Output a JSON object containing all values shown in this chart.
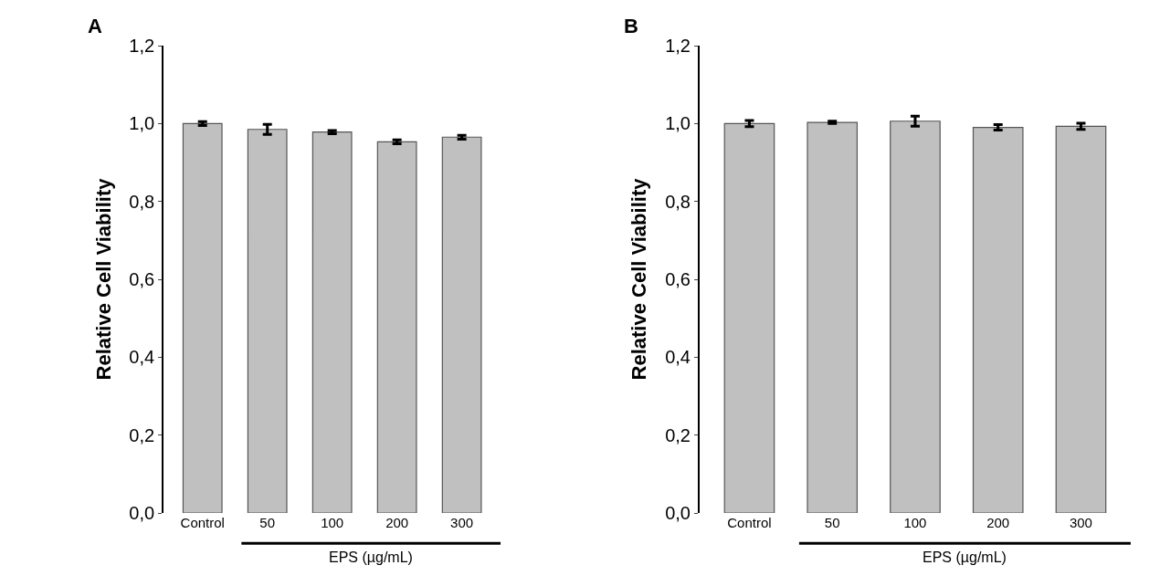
{
  "chart_data": [
    {
      "type": "bar",
      "title": "A",
      "ylabel": "Relative Cell Viability",
      "xlabel": "EPS (µg/mL)",
      "categories": [
        "Control",
        "50",
        "100",
        "200",
        "300"
      ],
      "values": [
        1.0,
        0.985,
        0.978,
        0.953,
        0.965
      ],
      "errors": [
        0.005,
        0.013,
        0.004,
        0.005,
        0.005
      ],
      "color": "#c0c0c0",
      "ylim": [
        0,
        1.2
      ],
      "yticks": [
        {
          "value": 0,
          "label": "0,0"
        },
        {
          "value": 0.2,
          "label": "0,2"
        },
        {
          "value": 0.4,
          "label": "0,4"
        },
        {
          "value": 0.6,
          "label": "0,6"
        },
        {
          "value": 0.8,
          "label": "0,8"
        },
        {
          "value": 1.0,
          "label": "1,0"
        },
        {
          "value": 1.2,
          "label": "1,2"
        }
      ]
    },
    {
      "type": "bar",
      "title": "B",
      "ylabel": "Relative Cell Viability",
      "xlabel": "EPS (µg/mL)",
      "categories": [
        "Control",
        "50",
        "100",
        "200",
        "300"
      ],
      "values": [
        1.0,
        1.003,
        1.006,
        0.99,
        0.993
      ],
      "errors": [
        0.008,
        0.003,
        0.013,
        0.007,
        0.008
      ],
      "color": "#c0c0c0",
      "ylim": [
        0,
        1.2
      ],
      "yticks": [
        {
          "value": 0,
          "label": "0,0"
        },
        {
          "value": 0.2,
          "label": "0,2"
        },
        {
          "value": 0.4,
          "label": "0,4"
        },
        {
          "value": 0.6,
          "label": "0,6"
        },
        {
          "value": 0.8,
          "label": "0,8"
        },
        {
          "value": 1.0,
          "label": "1,0"
        },
        {
          "value": 1.2,
          "label": "1,2"
        }
      ]
    }
  ]
}
